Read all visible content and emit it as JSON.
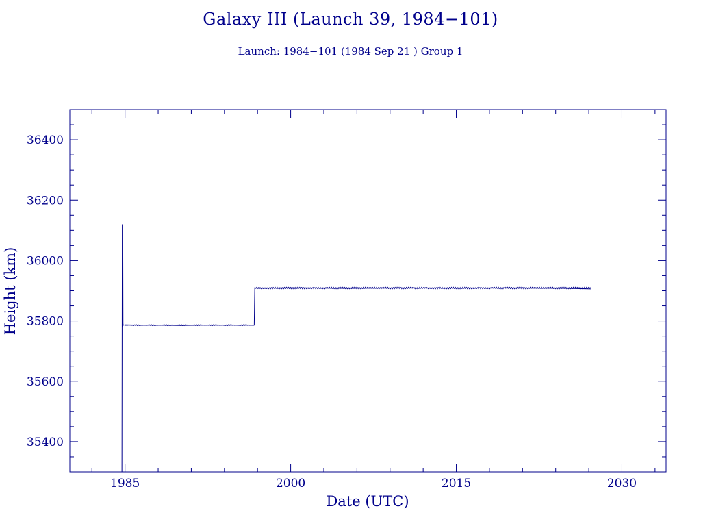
{
  "title": "Galaxy III (Launch 39, 1984−101)",
  "subtitle": "Launch: 1984−101  (1984 Sep 21 )  Group 1",
  "colors": {
    "foreground": "#00008b",
    "background": "#ffffff"
  },
  "chart_data": {
    "type": "line",
    "xlabel": "Date (UTC)",
    "ylabel": "Height (km)",
    "xlim": [
      1980,
      2034
    ],
    "ylim": [
      35300,
      36500
    ],
    "x_ticks": [
      1985,
      2000,
      2015,
      2030
    ],
    "x_tick_labels": [
      "1985",
      "2000",
      "2015",
      "2030"
    ],
    "y_ticks": [
      35400,
      35600,
      35800,
      36000,
      36200,
      36400
    ],
    "y_tick_labels": [
      "35400",
      "35600",
      "35800",
      "36000",
      "36200",
      "36400"
    ],
    "grid": false,
    "series": [
      {
        "x": [
          1984.72,
          1984.75,
          1984.78,
          1984.8,
          1984.82,
          1984.84,
          1984.86,
          1984.9,
          1985.0,
          1986.5,
          1988.0,
          1990.0,
          1992.0,
          1994.0,
          1996.0,
          1996.5,
          1996.7,
          1996.75,
          1997.0,
          2000.0,
          2005.0,
          2010.0,
          2015.0,
          2020.0,
          2025.0,
          2027.2
        ],
        "y": [
          35300,
          36120,
          35780,
          36100,
          35790,
          35785,
          35787,
          35786,
          35787,
          35786,
          35786,
          35785,
          35786,
          35786,
          35786,
          35786,
          35786,
          35910,
          35908,
          35910,
          35908,
          35909,
          35909,
          35909,
          35908,
          35906
        ]
      }
    ]
  }
}
